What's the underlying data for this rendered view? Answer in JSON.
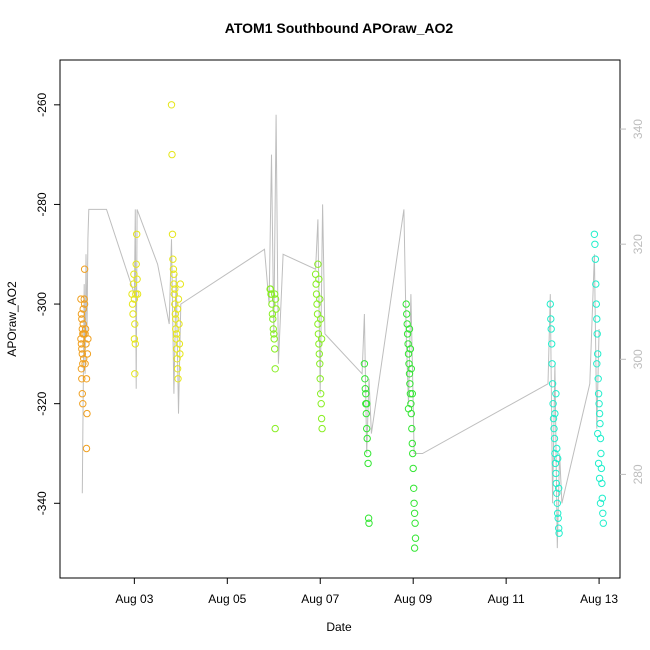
{
  "chart_data": {
    "type": "scatter",
    "title": "ATOM1 Southbound APOraw_AO2",
    "xlabel": "Date",
    "ylabel": "APOraw_AO2",
    "x_ticks": [
      "Aug 03",
      "Aug 05",
      "Aug 07",
      "Aug 09",
      "Aug 11",
      "Aug 13"
    ],
    "x_tick_days": [
      3,
      5,
      7,
      9,
      11,
      13
    ],
    "xlim_days": [
      1.4,
      13.45
    ],
    "y_ticks": [
      -260,
      -280,
      -300,
      -320,
      -340
    ],
    "ylim": [
      -355,
      -251
    ],
    "y2_ticks": [
      280,
      300,
      320,
      340
    ],
    "y2lim": [
      262,
      352
    ],
    "grid": false,
    "colors": {
      "axis": "#000000",
      "line": "#bebebe",
      "right_axis": "#bdbdbd"
    },
    "series": [
      {
        "color": "#f0a020",
        "points": [
          [
            1.85,
            -299
          ],
          [
            1.86,
            -302
          ],
          [
            1.87,
            -303
          ],
          [
            1.88,
            -305
          ],
          [
            1.89,
            -306
          ],
          [
            1.85,
            -307
          ],
          [
            1.86,
            -308
          ],
          [
            1.87,
            -309
          ],
          [
            1.88,
            -310
          ],
          [
            1.89,
            -312
          ],
          [
            1.86,
            -313
          ],
          [
            1.87,
            -315
          ],
          [
            1.88,
            -318
          ],
          [
            1.89,
            -320
          ],
          [
            1.9,
            -301
          ],
          [
            1.9,
            -304
          ],
          [
            1.91,
            -306
          ],
          [
            1.91,
            -311
          ],
          [
            1.92,
            -299
          ],
          [
            1.93,
            -293
          ],
          [
            1.93,
            -300
          ],
          [
            1.94,
            -306
          ],
          [
            1.94,
            -312
          ],
          [
            1.95,
            -305
          ],
          [
            1.96,
            -308
          ],
          [
            1.97,
            -315
          ],
          [
            1.97,
            -329
          ],
          [
            1.98,
            -322
          ],
          [
            1.99,
            -310
          ],
          [
            2.0,
            -307
          ]
        ]
      },
      {
        "color": "#e6e61a",
        "points": [
          [
            2.95,
            -298
          ],
          [
            2.96,
            -300
          ],
          [
            2.97,
            -302
          ],
          [
            2.98,
            -296
          ],
          [
            2.99,
            -294
          ],
          [
            3.0,
            -299
          ],
          [
            3.01,
            -304
          ],
          [
            3.0,
            -307
          ],
          [
            3.02,
            -308
          ],
          [
            3.01,
            -314
          ],
          [
            3.03,
            -298
          ],
          [
            3.04,
            -292
          ],
          [
            3.05,
            -286
          ],
          [
            3.06,
            -295
          ],
          [
            3.07,
            -298
          ],
          [
            3.8,
            -260
          ],
          [
            3.81,
            -270
          ],
          [
            3.82,
            -286
          ],
          [
            3.83,
            -291
          ],
          [
            3.84,
            -293
          ],
          [
            3.85,
            -296
          ],
          [
            3.86,
            -298
          ],
          [
            3.87,
            -300
          ],
          [
            3.88,
            -302
          ],
          [
            3.89,
            -305
          ],
          [
            3.9,
            -307
          ],
          [
            3.91,
            -309
          ],
          [
            3.92,
            -311
          ],
          [
            3.93,
            -313
          ],
          [
            3.94,
            -315
          ],
          [
            3.85,
            -294
          ],
          [
            3.87,
            -297
          ],
          [
            3.89,
            -303
          ],
          [
            3.91,
            -306
          ],
          [
            3.93,
            -301
          ],
          [
            3.95,
            -299
          ],
          [
            3.96,
            -304
          ],
          [
            3.97,
            -308
          ],
          [
            3.98,
            -310
          ],
          [
            3.99,
            -296
          ]
        ]
      },
      {
        "color": "#88ee22",
        "points": [
          [
            5.92,
            -297
          ],
          [
            5.93,
            -297
          ],
          [
            5.94,
            -298
          ],
          [
            5.95,
            -298
          ],
          [
            5.96,
            -300
          ],
          [
            5.97,
            -302
          ],
          [
            5.98,
            -303
          ],
          [
            5.99,
            -305
          ],
          [
            6.0,
            -306
          ],
          [
            6.01,
            -307
          ],
          [
            6.02,
            -309
          ],
          [
            6.03,
            -313
          ],
          [
            6.02,
            -298
          ],
          [
            6.04,
            -299
          ],
          [
            6.05,
            -301
          ],
          [
            6.03,
            -325
          ],
          [
            6.9,
            -294
          ],
          [
            6.91,
            -296
          ],
          [
            6.92,
            -298
          ],
          [
            6.93,
            -300
          ],
          [
            6.94,
            -302
          ],
          [
            6.95,
            -304
          ],
          [
            6.96,
            -306
          ],
          [
            6.97,
            -308
          ],
          [
            6.98,
            -310
          ],
          [
            6.99,
            -312
          ],
          [
            7.0,
            -315
          ],
          [
            7.01,
            -318
          ],
          [
            7.02,
            -320
          ],
          [
            7.03,
            -323
          ],
          [
            7.04,
            -325
          ],
          [
            6.95,
            -292
          ],
          [
            6.97,
            -295
          ],
          [
            6.99,
            -299
          ],
          [
            7.01,
            -303
          ],
          [
            7.03,
            -307
          ]
        ]
      },
      {
        "color": "#33e633",
        "points": [
          [
            7.95,
            -312
          ],
          [
            7.96,
            -315
          ],
          [
            7.97,
            -317
          ],
          [
            7.98,
            -320
          ],
          [
            7.99,
            -322
          ],
          [
            8.0,
            -325
          ],
          [
            8.01,
            -327
          ],
          [
            8.02,
            -330
          ],
          [
            8.03,
            -332
          ],
          [
            8.04,
            -343
          ],
          [
            8.05,
            -344
          ],
          [
            7.98,
            -318
          ],
          [
            8.0,
            -320
          ],
          [
            8.85,
            -300
          ],
          [
            8.86,
            -302
          ],
          [
            8.87,
            -304
          ],
          [
            8.88,
            -306
          ],
          [
            8.89,
            -308
          ],
          [
            8.9,
            -310
          ],
          [
            8.91,
            -312
          ],
          [
            8.92,
            -314
          ],
          [
            8.93,
            -316
          ],
          [
            8.94,
            -318
          ],
          [
            8.95,
            -320
          ],
          [
            8.96,
            -322
          ],
          [
            8.97,
            -325
          ],
          [
            8.98,
            -328
          ],
          [
            8.99,
            -330
          ],
          [
            9.0,
            -333
          ],
          [
            9.01,
            -337
          ],
          [
            9.02,
            -340
          ],
          [
            9.03,
            -342
          ],
          [
            9.04,
            -344
          ],
          [
            9.05,
            -347
          ],
          [
            9.03,
            -349
          ],
          [
            8.9,
            -321
          ],
          [
            8.92,
            -305
          ],
          [
            8.94,
            -309
          ],
          [
            8.96,
            -313
          ],
          [
            8.98,
            -318
          ]
        ]
      },
      {
        "color": "#22eecc",
        "points": [
          [
            11.95,
            -300
          ],
          [
            11.96,
            -303
          ],
          [
            11.97,
            -305
          ],
          [
            11.98,
            -308
          ],
          [
            11.99,
            -312
          ],
          [
            12.0,
            -316
          ],
          [
            12.01,
            -320
          ],
          [
            12.02,
            -323
          ],
          [
            12.03,
            -325
          ],
          [
            12.04,
            -327
          ],
          [
            12.05,
            -330
          ],
          [
            12.06,
            -332
          ],
          [
            12.07,
            -334
          ],
          [
            12.08,
            -336
          ],
          [
            12.09,
            -338
          ],
          [
            12.1,
            -340
          ],
          [
            12.11,
            -342
          ],
          [
            12.12,
            -343
          ],
          [
            12.13,
            -345
          ],
          [
            12.14,
            -346
          ],
          [
            12.05,
            -322
          ],
          [
            12.07,
            -318
          ],
          [
            12.09,
            -329
          ],
          [
            12.11,
            -331
          ],
          [
            12.13,
            -337
          ],
          [
            12.9,
            -286
          ],
          [
            12.91,
            -288
          ],
          [
            12.92,
            -291
          ],
          [
            12.93,
            -296
          ],
          [
            12.94,
            -300
          ],
          [
            12.95,
            -303
          ],
          [
            12.96,
            -306
          ],
          [
            12.97,
            -310
          ],
          [
            12.98,
            -315
          ],
          [
            12.99,
            -318
          ],
          [
            13.0,
            -320
          ],
          [
            13.01,
            -322
          ],
          [
            13.02,
            -324
          ],
          [
            13.03,
            -327
          ],
          [
            13.04,
            -330
          ],
          [
            13.05,
            -333
          ],
          [
            13.06,
            -336
          ],
          [
            13.07,
            -339
          ],
          [
            13.08,
            -342
          ],
          [
            13.09,
            -344
          ],
          [
            12.95,
            -312
          ],
          [
            12.97,
            -326
          ],
          [
            12.99,
            -332
          ],
          [
            13.01,
            -335
          ],
          [
            13.03,
            -340
          ]
        ]
      }
    ],
    "line_series": [
      {
        "points": [
          [
            1.88,
            -338
          ],
          [
            1.9,
            -318
          ],
          [
            1.92,
            -296
          ],
          [
            1.94,
            -314
          ],
          [
            1.96,
            -290
          ],
          [
            1.98,
            -306
          ],
          [
            2.0,
            -287
          ],
          [
            2.02,
            -281
          ],
          [
            2.4,
            -281
          ],
          [
            3.0,
            -298
          ],
          [
            3.02,
            -281
          ],
          [
            3.04,
            -317
          ],
          [
            3.06,
            -281
          ],
          [
            3.5,
            -292
          ],
          [
            3.75,
            -304
          ],
          [
            3.8,
            -287
          ],
          [
            3.85,
            -318
          ],
          [
            3.9,
            -294
          ],
          [
            3.95,
            -322
          ],
          [
            4.0,
            -300
          ],
          [
            5.8,
            -289
          ],
          [
            5.9,
            -300
          ],
          [
            5.95,
            -270
          ],
          [
            6.0,
            -306
          ],
          [
            6.05,
            -262
          ],
          [
            6.1,
            -312
          ],
          [
            6.2,
            -290
          ],
          [
            6.9,
            -293
          ],
          [
            6.95,
            -283
          ],
          [
            7.0,
            -318
          ],
          [
            7.05,
            -280
          ],
          [
            7.1,
            -306
          ],
          [
            7.9,
            -314
          ],
          [
            7.95,
            -302
          ],
          [
            8.0,
            -330
          ],
          [
            8.05,
            -315
          ],
          [
            8.1,
            -326
          ],
          [
            8.8,
            -281
          ],
          [
            8.85,
            -306
          ],
          [
            8.9,
            -320
          ],
          [
            8.95,
            -298
          ],
          [
            9.0,
            -320
          ],
          [
            9.02,
            -330
          ],
          [
            9.2,
            -330
          ],
          [
            11.9,
            -316
          ],
          [
            11.95,
            -298
          ],
          [
            12.0,
            -340
          ],
          [
            12.05,
            -312
          ],
          [
            12.1,
            -349
          ],
          [
            12.15,
            -330
          ],
          [
            12.2,
            -340
          ],
          [
            12.8,
            -316
          ],
          [
            12.9,
            -290
          ],
          [
            12.95,
            -325
          ],
          [
            13.0,
            -305
          ]
        ]
      }
    ]
  }
}
